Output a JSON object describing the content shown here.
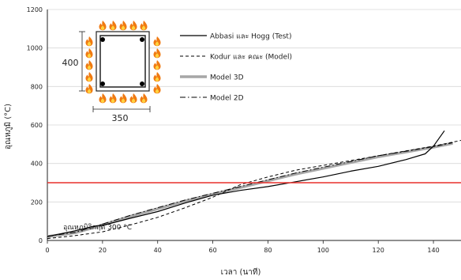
{
  "chart_data": {
    "type": "line",
    "xlabel": "เวลา (นาที)",
    "ylabel": "อุณหภูมิ (°C)",
    "xlim": [
      0,
      150
    ],
    "ylim": [
      0,
      1200
    ],
    "xticks": [
      "0",
      "20",
      "40",
      "60",
      "80",
      "100",
      "120",
      "140"
    ],
    "yticks": [
      "0",
      "200",
      "400",
      "600",
      "800",
      "1000",
      "1200"
    ],
    "grid": "horizontal",
    "legend_position": "top-middle",
    "series": [
      {
        "name": "Abbasi และ Hogg (Test)",
        "style": "solid",
        "color": "#000000",
        "x": [
          0,
          10,
          17,
          20,
          30,
          40,
          50,
          60,
          70,
          80,
          90,
          100,
          110,
          120,
          130,
          137,
          140,
          144
        ],
        "y": [
          20,
          50,
          75,
          78,
          115,
          150,
          195,
          235,
          260,
          280,
          305,
          330,
          360,
          385,
          420,
          450,
          490,
          570
        ]
      },
      {
        "name": "Kodur และ คณะ (Model)",
        "style": "dashed",
        "color": "#000000",
        "x": [
          0,
          10,
          20,
          30,
          40,
          50,
          60,
          70,
          80,
          90,
          100,
          110,
          120,
          130,
          140,
          150
        ],
        "y": [
          10,
          25,
          45,
          80,
          120,
          170,
          225,
          290,
          330,
          365,
          390,
          415,
          440,
          465,
          490,
          520
        ]
      },
      {
        "name": "Model 3D",
        "style": "thick-solid",
        "color": "#a6a6a6",
        "x": [
          0,
          10,
          20,
          30,
          40,
          50,
          60,
          70,
          80,
          90,
          100,
          110,
          120,
          130,
          140,
          147
        ],
        "y": [
          20,
          40,
          80,
          125,
          165,
          205,
          240,
          275,
          310,
          345,
          375,
          405,
          435,
          460,
          485,
          505
        ]
      },
      {
        "name": "Model 2D",
        "style": "dash-dot",
        "color": "#000000",
        "x": [
          0,
          10,
          20,
          30,
          40,
          50,
          60,
          70,
          80,
          90,
          100,
          110,
          120,
          130,
          140,
          147
        ],
        "y": [
          22,
          42,
          85,
          130,
          170,
          210,
          245,
          280,
          315,
          350,
          380,
          410,
          440,
          463,
          488,
          508
        ]
      }
    ],
    "reference_line": {
      "y": 300,
      "color": "#e8302c",
      "label": "อุณหภูมิวิกฤติ 300 °C"
    }
  },
  "inset": {
    "height_label": "400",
    "width_label": "350",
    "fire_icon": "fire-icon"
  }
}
